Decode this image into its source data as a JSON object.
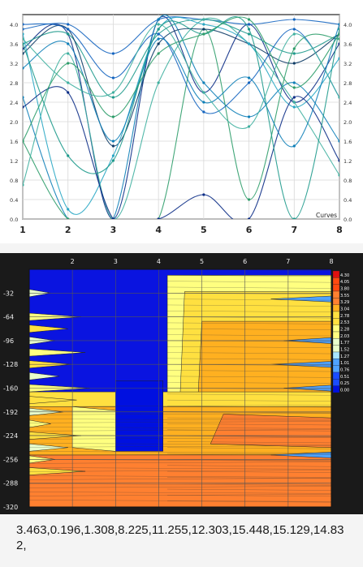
{
  "chart_data": [
    {
      "type": "line",
      "x": [
        1,
        2,
        3,
        4,
        5,
        6,
        7,
        8
      ],
      "xlim": [
        1,
        8
      ],
      "ylim": [
        0,
        4.2
      ],
      "x_ticks": [
        "1",
        "2",
        "3",
        "4",
        "5",
        "6",
        "7",
        "8"
      ],
      "y_ticks": [
        "0.0",
        "0.4",
        "0.8",
        "1.2",
        "1.6",
        "2.0",
        "2.4",
        "2.8",
        "3.2",
        "3.6",
        "4.0"
      ],
      "grid": true,
      "legend_label": "Curves",
      "colors": [
        "#0b2c86",
        "#1565c0",
        "#0e7fb8",
        "#1e9a8c",
        "#2e9d6a",
        "#3fb0a0",
        "#0d3b66",
        "#29a7c4"
      ],
      "series": [
        {
          "values": [
            3.5,
            3.8,
            0.0,
            4.1,
            2.6,
            4.0,
            2.4,
            3.6
          ]
        },
        {
          "values": [
            3.9,
            4.0,
            3.4,
            4.1,
            4.1,
            4.0,
            4.1,
            4.0
          ]
        },
        {
          "values": [
            2.5,
            0.0,
            0.0,
            4.1,
            2.8,
            2.1,
            2.8,
            1.6
          ]
        },
        {
          "values": [
            3.6,
            3.8,
            2.5,
            3.8,
            4.1,
            3.8,
            3.4,
            3.8
          ]
        },
        {
          "values": [
            1.6,
            0.0,
            0.0,
            0.0,
            3.9,
            0.4,
            3.5,
            3.7
          ]
        },
        {
          "values": [
            0.7,
            3.4,
            0.0,
            2.8,
            4.1,
            3.6,
            2.4,
            0.9
          ]
        },
        {
          "values": [
            3.4,
            3.9,
            1.5,
            3.6,
            3.9,
            3.6,
            3.2,
            3.8
          ]
        },
        {
          "values": [
            3.8,
            0.2,
            1.3,
            3.9,
            4.0,
            3.6,
            2.3,
            3.3
          ]
        },
        {
          "values": [
            2.3,
            2.6,
            0.0,
            0.0,
            0.5,
            0.0,
            2.5,
            1.2
          ]
        },
        {
          "values": [
            4.0,
            3.9,
            2.9,
            3.8,
            2.2,
            2.8,
            3.9,
            2.5
          ]
        },
        {
          "values": [
            3.1,
            3.6,
            1.6,
            3.7,
            2.4,
            2.9,
            1.5,
            4.0
          ]
        },
        {
          "values": [
            3.6,
            1.3,
            1.2,
            3.9,
            3.8,
            3.9,
            0.0,
            3.9
          ]
        },
        {
          "values": [
            1.6,
            3.2,
            2.1,
            3.4,
            3.8,
            4.1,
            2.7,
            3.8
          ]
        },
        {
          "values": [
            3.7,
            2.8,
            2.6,
            4.0,
            2.6,
            1.9,
            3.8,
            2.5
          ]
        }
      ]
    },
    {
      "type": "heatmap",
      "x_ticks": [
        "2",
        "3",
        "4",
        "5",
        "6",
        "7",
        "8"
      ],
      "y_ticks": [
        "-32",
        "-64",
        "-96",
        "-128",
        "-160",
        "-192",
        "-224",
        "-256",
        "-288",
        "-320"
      ],
      "xlim": [
        1,
        8
      ],
      "ylim": [
        -320,
        0
      ],
      "legend_ticks": [
        "4.30",
        "4.05",
        "3.80",
        "3.55",
        "3.29",
        "3.04",
        "2.78",
        "2.53",
        "2.28",
        "2.03",
        "1.77",
        "1.52",
        "1.27",
        "1.01",
        "0.76",
        "0.51",
        "0.25",
        "0.00"
      ],
      "vmin": 0,
      "vmax": 4.3,
      "legend_placement": "right",
      "colormap": [
        "#0010e0",
        "#1a4cff",
        "#4fa3ff",
        "#a8e6ff",
        "#e8ffcc",
        "#ffff80",
        "#ffe040",
        "#ffb020",
        "#ff8030",
        "#ff4a10",
        "#e01010"
      ]
    }
  ],
  "values_text": "3.463,0.196,1.308,8.225,11.255,12.303,15.448,15.129,14.832,"
}
